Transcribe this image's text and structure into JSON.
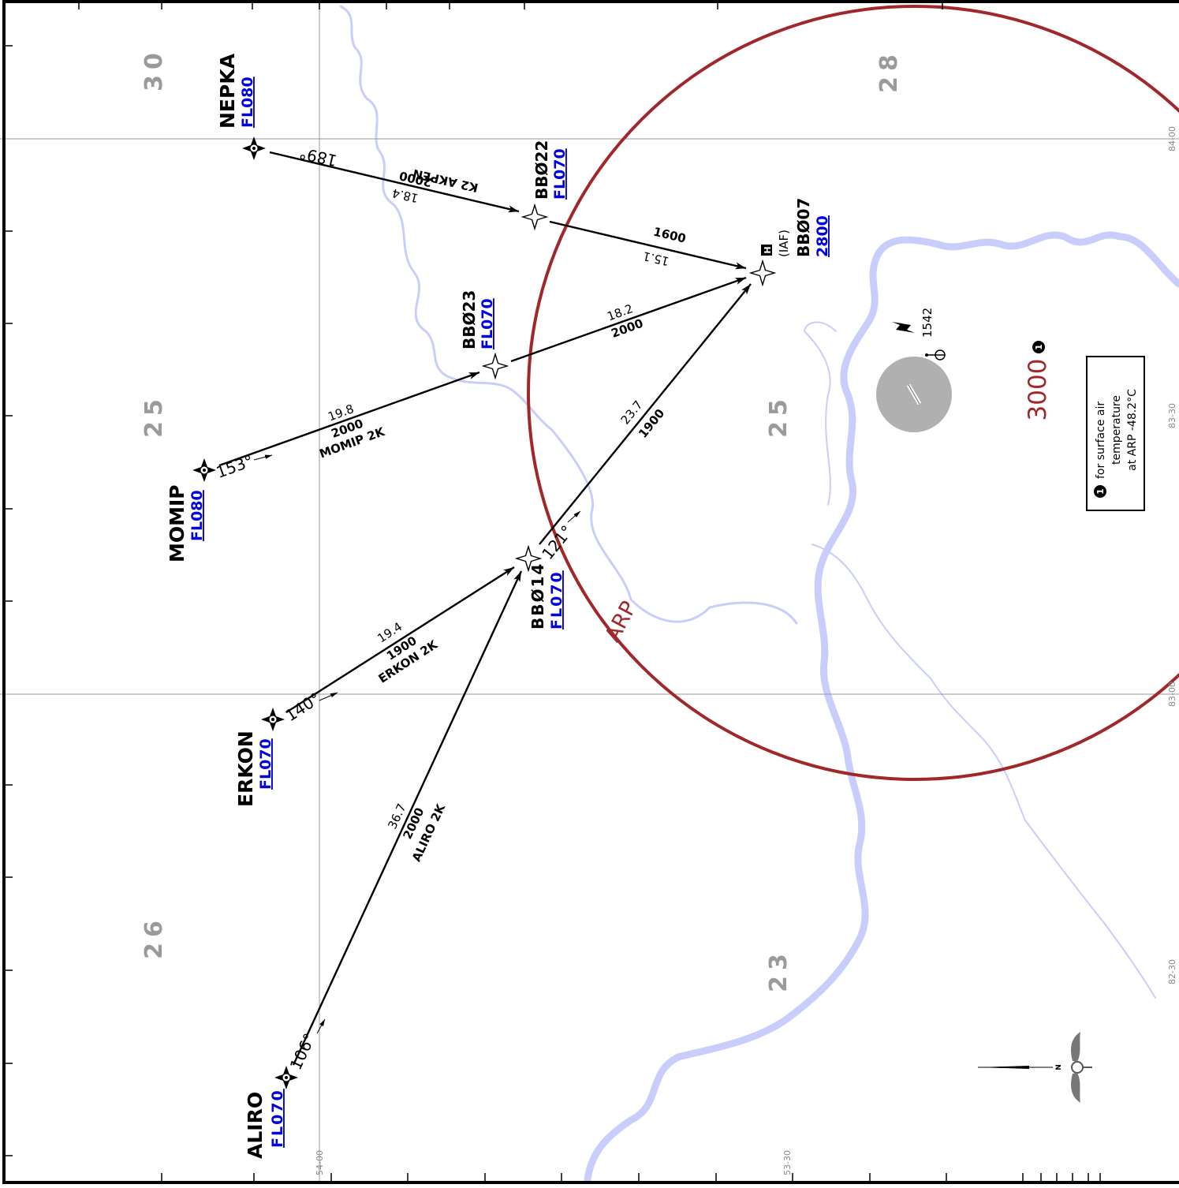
{
  "sector_altitudes": [
    "30",
    "28",
    "25",
    "25",
    "26",
    "23"
  ],
  "waypoints": [
    {
      "name": "NEPKA",
      "altitude": "FL080"
    },
    {
      "name": "BBØ22",
      "altitude": "FL070"
    },
    {
      "name": "BBØ07",
      "altitude": "2800",
      "role": "(IAF)"
    },
    {
      "name": "BBØ23",
      "altitude": "FL070"
    },
    {
      "name": "MOMIP",
      "altitude": "FL080"
    },
    {
      "name": "BBØ14",
      "altitude": "FL070"
    },
    {
      "name": "ERKON",
      "altitude": "FL070"
    },
    {
      "name": "ALIRO",
      "altitude": "FL070"
    }
  ],
  "legs": [
    {
      "course": "189°",
      "distance": "18.4",
      "altitude": "2000",
      "procedure": "K2 AKPEN"
    },
    {
      "distance": "15.1",
      "altitude": "1600"
    },
    {
      "course": "153°",
      "distance": "19.8",
      "altitude": "2000",
      "procedure": "MOMIP 2K"
    },
    {
      "distance": "18.2",
      "altitude": "2000"
    },
    {
      "course": "140°",
      "distance": "19.4",
      "altitude": "1900",
      "procedure": "ERKON 2K"
    },
    {
      "course": "121°",
      "distance": "23.7",
      "altitude": "1900"
    },
    {
      "course": "106°",
      "distance": "36.7",
      "altitude": "2000",
      "procedure": "ALIRO 2K"
    }
  ],
  "arp_label": "ARP",
  "msa_altitude": "3000",
  "obstacle_elevation": "1542",
  "note": [
    "for surface air",
    "temperature",
    "at ARP -48.2°C"
  ],
  "latitude_labels": [
    "84-00",
    "83-30",
    "83-00",
    "82-30"
  ],
  "longitude_labels": [
    "54-00",
    "53-30"
  ],
  "compass_label": "N"
}
